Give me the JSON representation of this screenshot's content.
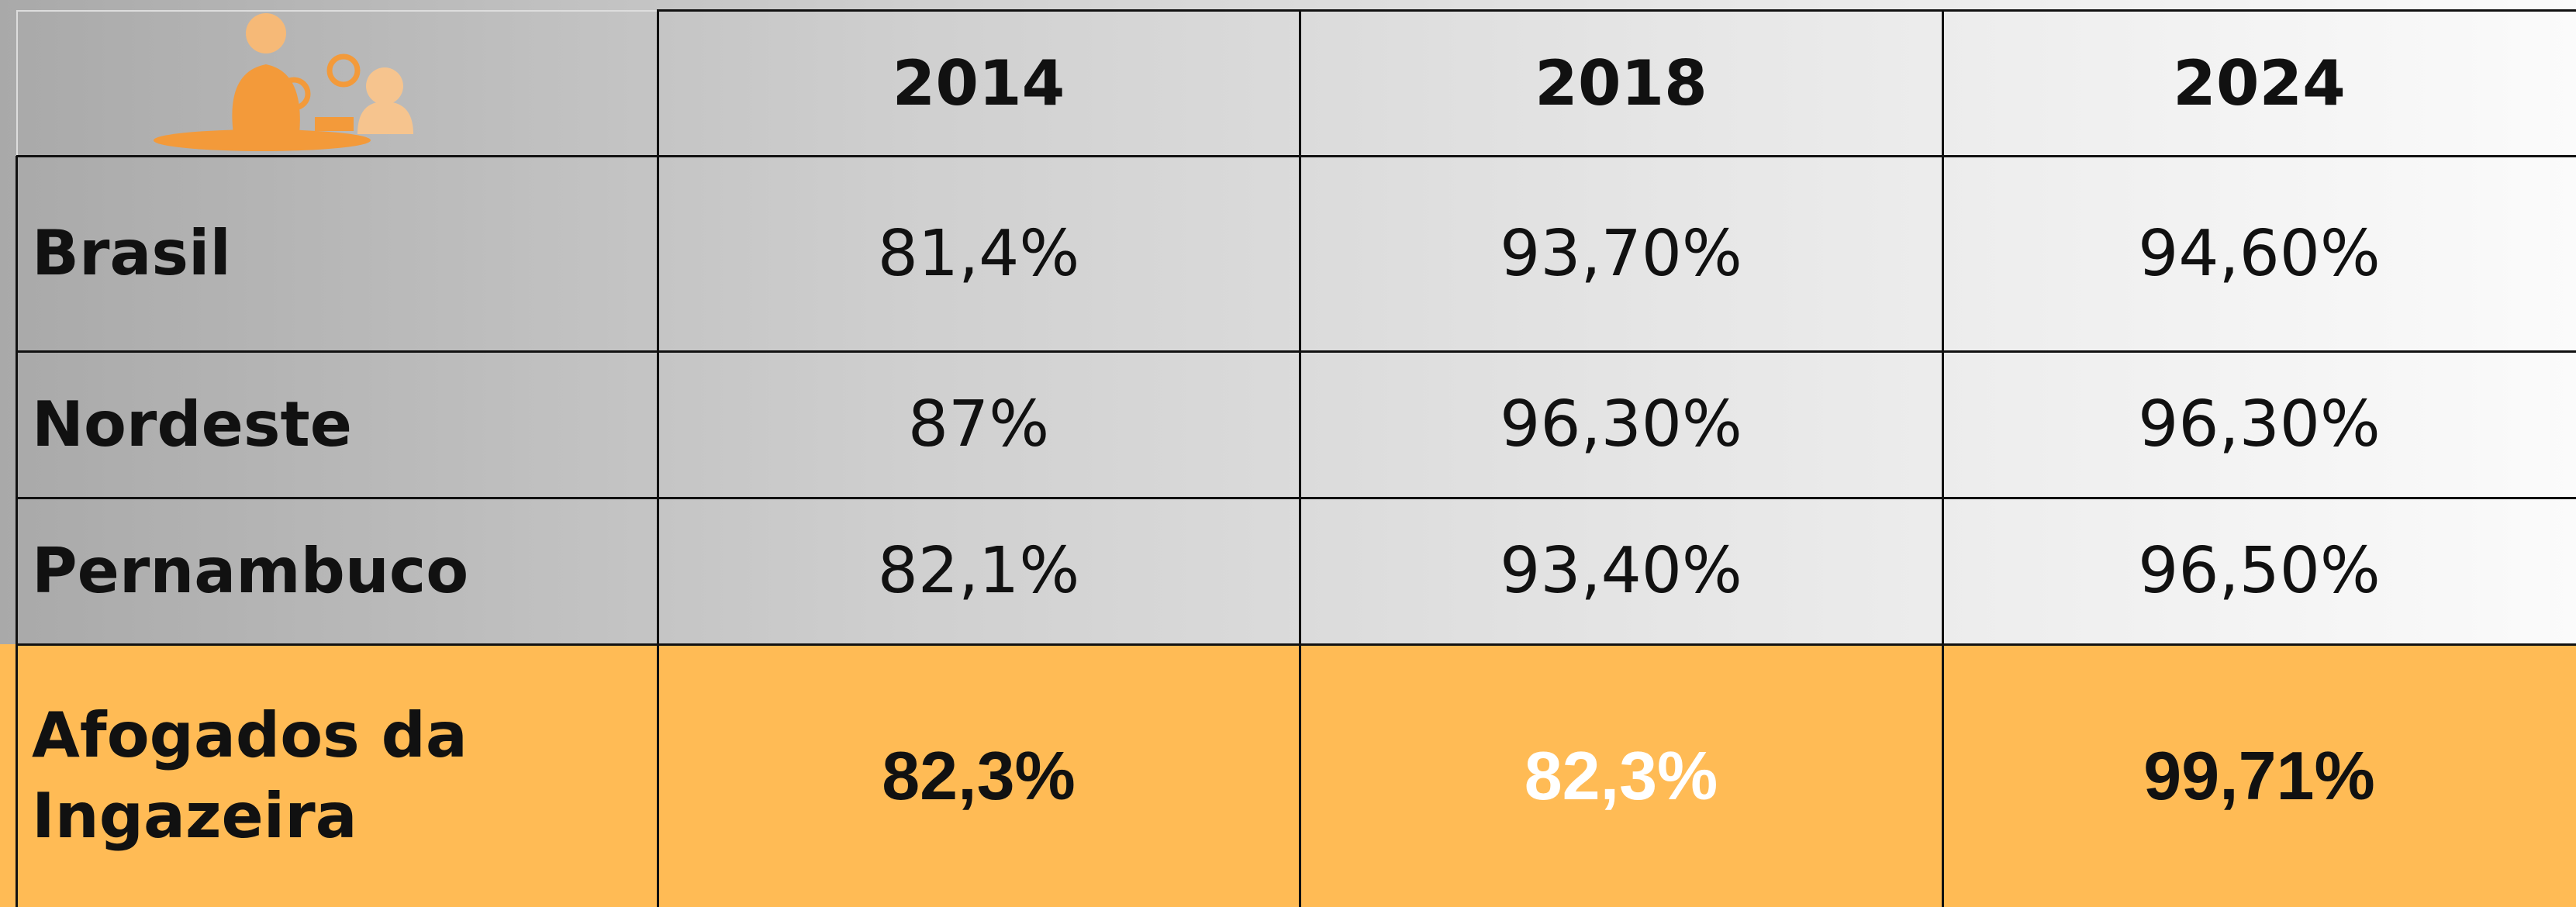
{
  "table": {
    "columns": [
      "2014",
      "2018",
      "2024"
    ],
    "rows": [
      {
        "label": "Brasil",
        "values": [
          "81,4%",
          "93,70%",
          "94,60%"
        ]
      },
      {
        "label": "Nordeste",
        "values": [
          "87%",
          "96,30%",
          "96,30%"
        ]
      },
      {
        "label": "Pernambuco",
        "values": [
          "82,1%",
          "93,40%",
          "96,50%"
        ]
      },
      {
        "label": "Afogados da Ingazeira",
        "values": [
          "82,3%",
          "82,3%",
          "99,71%"
        ]
      }
    ]
  }
}
